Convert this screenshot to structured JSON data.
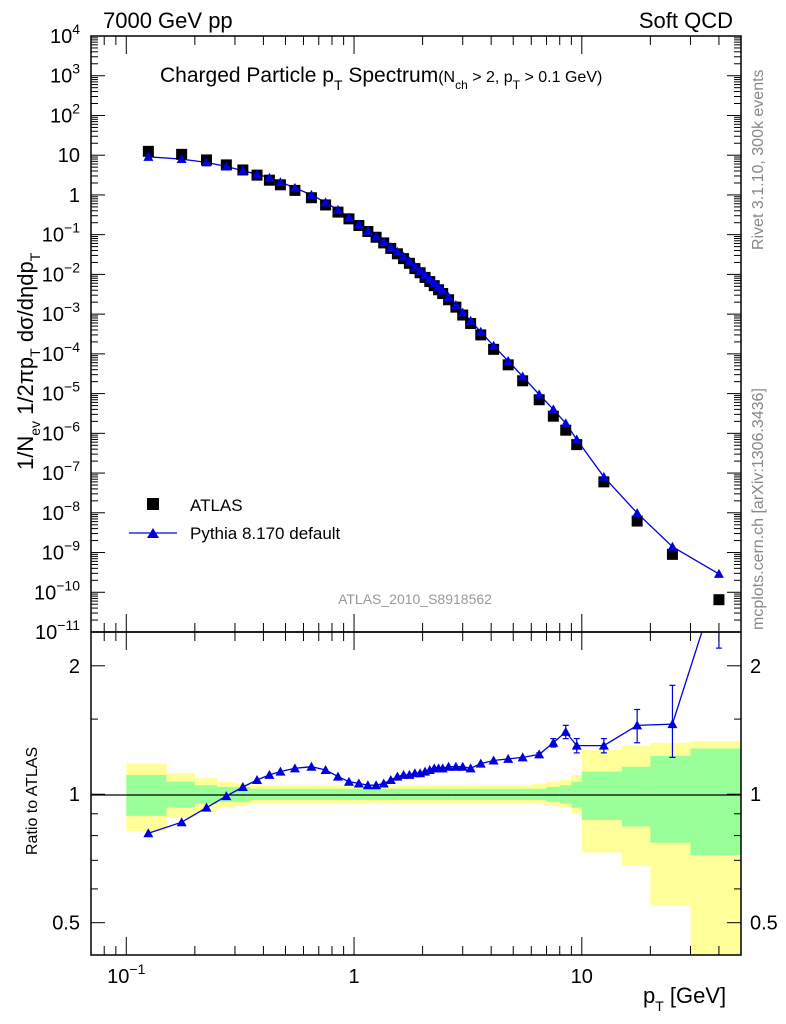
{
  "header": {
    "left": "7000 GeV pp",
    "right": "Soft QCD"
  },
  "side_labels": {
    "upper": "Rivet 3.1.10,  300k events",
    "lower": "mcplots.cern.ch [arXiv:1306.3436]"
  },
  "watermark": "ATLAS_2010_S8918562",
  "colors": {
    "mc": "#0000dd",
    "data": "#000000",
    "band_inner": "#99ff99",
    "band_outer": "#ffff99"
  },
  "chart_data": [
    {
      "type": "scatter",
      "title": "Charged Particle p_T Spectrum",
      "title_main": "Charged Particle p",
      "title_sub": "T",
      "title_rest": " Spectrum",
      "title_cond_a": "(N",
      "title_cond_b": "ch",
      "title_cond_c": " > 2, p",
      "title_cond_d": "T",
      "title_cond_e": " > 0.1 GeV)",
      "ylabel": "1/N_ev 1/2πp_T dσ/dηdp_T",
      "y_scale": "log",
      "y_range": [
        1e-11,
        10000.0
      ],
      "x_scale": "log",
      "x_range": [
        0.07,
        50
      ],
      "legend_position": "bottom-left",
      "y_ticks": [
        "10^-11",
        "10^-10",
        "10^-9",
        "10^-8",
        "10^-7",
        "10^-6",
        "10^-5",
        "10^-4",
        "10^-3",
        "10^-2",
        "10^-1",
        "1",
        "10",
        "10^2",
        "10^3",
        "10^4"
      ],
      "series": [
        {
          "name": "ATLAS",
          "marker": "square",
          "x": [
            0.125,
            0.175,
            0.225,
            0.275,
            0.325,
            0.375,
            0.425,
            0.475,
            0.55,
            0.65,
            0.75,
            0.85,
            0.95,
            1.05,
            1.15,
            1.25,
            1.35,
            1.45,
            1.55,
            1.65,
            1.75,
            1.85,
            1.95,
            2.05,
            2.15,
            2.25,
            2.35,
            2.45,
            2.6,
            2.8,
            3.0,
            3.25,
            3.6,
            4.1,
            4.75,
            5.5,
            6.5,
            7.5,
            8.5,
            9.5,
            12.5,
            17.5,
            25,
            40
          ],
          "y": [
            12.5,
            10.5,
            7.6,
            5.7,
            4.25,
            3.15,
            2.35,
            1.8,
            1.3,
            0.85,
            0.56,
            0.37,
            0.25,
            0.17,
            0.12,
            0.086,
            0.062,
            0.045,
            0.033,
            0.025,
            0.019,
            0.014,
            0.011,
            0.0084,
            0.0066,
            0.0052,
            0.0041,
            0.0033,
            0.0023,
            0.0015,
            0.00095,
            0.00058,
            0.0003,
            0.00013,
            5.3e-05,
            2.1e-05,
            7e-06,
            2.7e-06,
            1.2e-06,
            5.2e-07,
            6e-08,
            6.2e-09,
            9e-10,
            6.5e-11
          ]
        },
        {
          "name": "Pythia 8.170 default",
          "marker": "triangle",
          "x": [
            0.125,
            0.175,
            0.225,
            0.275,
            0.325,
            0.375,
            0.425,
            0.475,
            0.55,
            0.65,
            0.75,
            0.85,
            0.95,
            1.05,
            1.15,
            1.25,
            1.35,
            1.45,
            1.55,
            1.65,
            1.75,
            1.85,
            1.95,
            2.05,
            2.15,
            2.25,
            2.35,
            2.45,
            2.6,
            2.8,
            3.0,
            3.25,
            3.6,
            4.1,
            4.75,
            5.5,
            6.5,
            7.5,
            8.5,
            9.5,
            12.5,
            17.5,
            25,
            40
          ],
          "y": [
            9.1,
            8.0,
            6.6,
            5.2,
            4.1,
            3.3,
            2.7,
            2.1,
            1.5,
            1.0,
            0.65,
            0.42,
            0.27,
            0.18,
            0.125,
            0.09,
            0.066,
            0.049,
            0.037,
            0.028,
            0.021,
            0.0157,
            0.0124,
            0.0097,
            0.0077,
            0.0061,
            0.0048,
            0.0039,
            0.0027,
            0.0017,
            0.0011,
            0.00068,
            0.00036,
            0.00016,
            6.6e-05,
            2.7e-05,
            9.5e-06,
            4e-06,
            1.8e-06,
            7e-07,
            8e-08,
            9.8e-09,
            1.4e-09,
            2.9e-10
          ]
        }
      ]
    },
    {
      "type": "line",
      "ylabel": "Ratio to ATLAS",
      "xlabel": "p_T [GeV]",
      "xlabel_main": "p",
      "xlabel_sub": "T",
      "xlabel_rest": "  [GeV]",
      "y_scale": "log",
      "y_range": [
        0.42,
        2.4
      ],
      "x_scale": "log",
      "x_range": [
        0.07,
        50
      ],
      "y_ticks": [
        "0.5",
        "1",
        "2"
      ],
      "x_ticks": [
        "10^-1",
        "1",
        "10"
      ],
      "reference_line": 1,
      "bands": {
        "bin_edges": [
          0.1,
          0.15,
          0.2,
          0.25,
          0.3,
          0.35,
          0.4,
          0.45,
          0.5,
          0.6,
          0.7,
          0.8,
          0.9,
          1.0,
          1.1,
          1.2,
          1.3,
          1.4,
          1.5,
          1.6,
          1.7,
          1.8,
          1.9,
          2.0,
          2.1,
          2.2,
          2.3,
          2.4,
          2.5,
          2.7,
          2.9,
          3.1,
          3.4,
          3.8,
          4.4,
          5.1,
          6.0,
          7.0,
          8.0,
          9.0,
          10.0,
          15.0,
          20.0,
          30.0,
          50.0
        ],
        "stat_low": [
          0.89,
          0.93,
          0.95,
          0.96,
          0.96,
          0.97,
          0.97,
          0.97,
          0.97,
          0.97,
          0.97,
          0.97,
          0.97,
          0.97,
          0.97,
          0.97,
          0.97,
          0.97,
          0.97,
          0.97,
          0.97,
          0.97,
          0.97,
          0.97,
          0.97,
          0.97,
          0.97,
          0.97,
          0.97,
          0.97,
          0.97,
          0.97,
          0.97,
          0.97,
          0.97,
          0.97,
          0.97,
          0.96,
          0.95,
          0.93,
          0.87,
          0.84,
          0.77,
          0.72
        ],
        "stat_high": [
          1.11,
          1.07,
          1.05,
          1.04,
          1.04,
          1.03,
          1.03,
          1.03,
          1.03,
          1.03,
          1.03,
          1.03,
          1.03,
          1.03,
          1.03,
          1.03,
          1.03,
          1.03,
          1.03,
          1.03,
          1.03,
          1.03,
          1.03,
          1.03,
          1.03,
          1.03,
          1.03,
          1.03,
          1.03,
          1.03,
          1.03,
          1.03,
          1.03,
          1.03,
          1.03,
          1.03,
          1.03,
          1.04,
          1.05,
          1.07,
          1.13,
          1.16,
          1.23,
          1.28
        ],
        "syst_low": [
          0.82,
          0.88,
          0.91,
          0.93,
          0.94,
          0.95,
          0.95,
          0.95,
          0.95,
          0.95,
          0.95,
          0.95,
          0.95,
          0.95,
          0.95,
          0.95,
          0.95,
          0.95,
          0.95,
          0.95,
          0.95,
          0.95,
          0.95,
          0.95,
          0.95,
          0.95,
          0.95,
          0.95,
          0.95,
          0.95,
          0.95,
          0.95,
          0.95,
          0.95,
          0.95,
          0.95,
          0.95,
          0.94,
          0.93,
          0.9,
          0.73,
          0.68,
          0.55,
          0.38
        ],
        "syst_high": [
          1.18,
          1.12,
          1.09,
          1.07,
          1.06,
          1.05,
          1.05,
          1.05,
          1.05,
          1.05,
          1.05,
          1.05,
          1.05,
          1.05,
          1.05,
          1.05,
          1.05,
          1.05,
          1.05,
          1.05,
          1.05,
          1.05,
          1.05,
          1.05,
          1.05,
          1.05,
          1.05,
          1.05,
          1.05,
          1.05,
          1.05,
          1.05,
          1.05,
          1.05,
          1.05,
          1.05,
          1.06,
          1.07,
          1.08,
          1.11,
          1.27,
          1.3,
          1.32,
          1.33
        ]
      },
      "series": [
        {
          "name": "Pythia 8.170 default",
          "x": [
            0.125,
            0.175,
            0.225,
            0.275,
            0.325,
            0.375,
            0.425,
            0.475,
            0.55,
            0.65,
            0.75,
            0.85,
            0.95,
            1.05,
            1.15,
            1.25,
            1.35,
            1.45,
            1.55,
            1.65,
            1.75,
            1.85,
            1.95,
            2.05,
            2.15,
            2.25,
            2.35,
            2.45,
            2.6,
            2.8,
            3.0,
            3.25,
            3.6,
            4.1,
            4.75,
            5.5,
            6.5,
            7.5,
            8.5,
            9.5,
            12.5,
            17.5,
            25,
            40
          ],
          "y": [
            0.81,
            0.86,
            0.93,
            0.99,
            1.04,
            1.08,
            1.11,
            1.13,
            1.15,
            1.16,
            1.14,
            1.1,
            1.07,
            1.06,
            1.05,
            1.05,
            1.06,
            1.08,
            1.1,
            1.11,
            1.11,
            1.12,
            1.12,
            1.13,
            1.14,
            1.15,
            1.15,
            1.15,
            1.16,
            1.16,
            1.16,
            1.15,
            1.18,
            1.2,
            1.21,
            1.22,
            1.24,
            1.32,
            1.4,
            1.3,
            1.3,
            1.45,
            1.46,
            3.2
          ],
          "err_low": [
            0,
            0,
            0,
            0,
            0,
            0,
            0,
            0,
            0,
            0,
            0,
            0,
            0,
            0,
            0,
            0,
            0,
            0,
            0,
            0,
            0,
            0,
            0,
            0,
            0,
            0,
            0,
            0,
            0,
            0,
            0,
            0,
            0,
            0,
            0,
            0,
            0.01,
            0.03,
            0.05,
            0.05,
            0.05,
            0.13,
            0.24,
            1.0
          ],
          "err_high": [
            0,
            0,
            0,
            0,
            0,
            0,
            0,
            0,
            0,
            0,
            0,
            0,
            0,
            0,
            0,
            0,
            0,
            0,
            0,
            0,
            0,
            0,
            0,
            0,
            0,
            0,
            0,
            0,
            0,
            0,
            0,
            0,
            0,
            0,
            0,
            0,
            0.01,
            0.03,
            0.05,
            0.05,
            0.05,
            0.13,
            0.34,
            1.0
          ]
        }
      ]
    }
  ]
}
